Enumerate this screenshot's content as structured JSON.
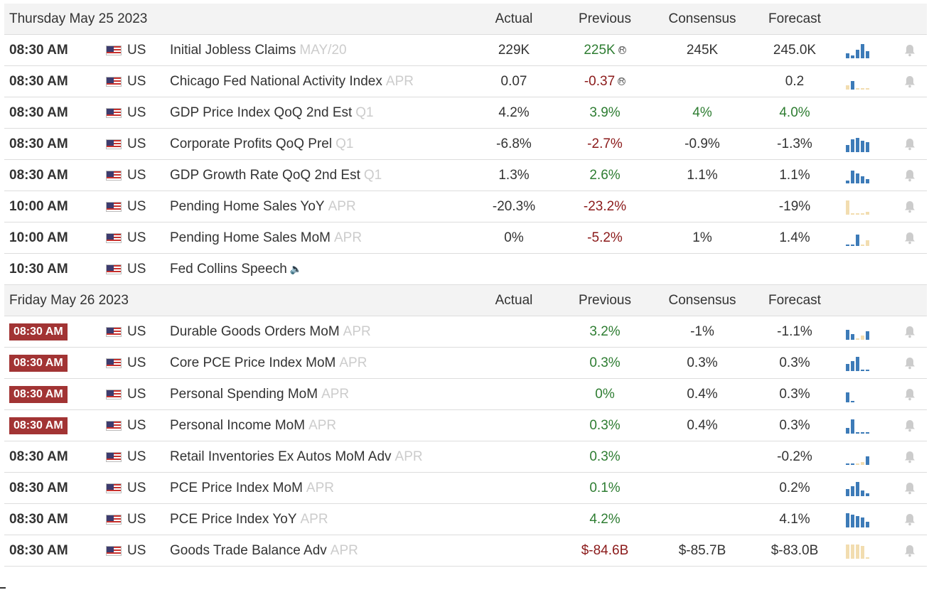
{
  "columns": {
    "actual": "Actual",
    "previous": "Previous",
    "consensus": "Consensus",
    "forecast": "Forecast"
  },
  "colors": {
    "positive": "#2e7d32",
    "negative": "#8b1a1a",
    "badge": "#a23434",
    "spark_blue": "#3d7bb8",
    "spark_tan": "#f2ddb0"
  },
  "days": [
    {
      "date": "Thursday May 25 2023",
      "events": [
        {
          "time": "08:30 AM",
          "hot": false,
          "country": "US",
          "event": "Initial Jobless Claims",
          "ref": "MAY/20",
          "actual": "229K",
          "previous": "225K",
          "prev_class": "pos",
          "prev_revised": true,
          "consensus": "245K",
          "forecast": "245.0K",
          "fore_class": "",
          "spark": [
            {
              "v": 0.35,
              "c": "b"
            },
            {
              "v": 0.2,
              "c": "b"
            },
            {
              "v": 0.6,
              "c": "b"
            },
            {
              "v": 1,
              "c": "b"
            },
            {
              "v": 0.5,
              "c": "b"
            }
          ],
          "bell": true
        },
        {
          "time": "08:30 AM",
          "hot": false,
          "country": "US",
          "event": "Chicago Fed National Activity Index",
          "ref": "APR",
          "actual": "0.07",
          "previous": "-0.37",
          "prev_class": "neg",
          "prev_revised": true,
          "consensus": "",
          "forecast": "0.2",
          "fore_class": "",
          "spark": [
            {
              "v": 0.3,
              "c": "t"
            },
            {
              "v": 0.6,
              "c": "b"
            },
            {
              "v": 0.1,
              "c": "t"
            },
            {
              "v": 0.1,
              "c": "t"
            },
            {
              "v": 0.1,
              "c": "t"
            }
          ],
          "bell": true
        },
        {
          "time": "08:30 AM",
          "hot": false,
          "country": "US",
          "event": "GDP Price Index QoQ 2nd Est",
          "ref": "Q1",
          "actual": "4.2%",
          "previous": "3.9%",
          "prev_class": "pos",
          "prev_revised": false,
          "consensus": "4%",
          "cons_class": "pos",
          "forecast": "4.0%",
          "fore_class": "pos",
          "spark": [],
          "bell": false
        },
        {
          "time": "08:30 AM",
          "hot": false,
          "country": "US",
          "event": "Corporate Profits QoQ Prel",
          "ref": "Q1",
          "actual": "-6.8%",
          "previous": "-2.7%",
          "prev_class": "neg",
          "prev_revised": false,
          "consensus": "-0.9%",
          "forecast": "-1.3%",
          "fore_class": "",
          "spark": [
            {
              "v": 0.5,
              "c": "b"
            },
            {
              "v": 0.9,
              "c": "b"
            },
            {
              "v": 1,
              "c": "b"
            },
            {
              "v": 0.8,
              "c": "b"
            },
            {
              "v": 0.7,
              "c": "b"
            }
          ],
          "bell": true
        },
        {
          "time": "08:30 AM",
          "hot": false,
          "country": "US",
          "event": "GDP Growth Rate QoQ 2nd Est",
          "ref": "Q1",
          "actual": "1.3%",
          "previous": "2.6%",
          "prev_class": "pos",
          "prev_revised": false,
          "consensus": "1.1%",
          "forecast": "1.1%",
          "fore_class": "",
          "spark": [
            {
              "v": 0.2,
              "c": "b"
            },
            {
              "v": 0.9,
              "c": "b"
            },
            {
              "v": 0.7,
              "c": "b"
            },
            {
              "v": 0.5,
              "c": "b"
            },
            {
              "v": 0.3,
              "c": "b"
            }
          ],
          "bell": true
        },
        {
          "time": "10:00 AM",
          "hot": false,
          "country": "US",
          "event": "Pending Home Sales YoY",
          "ref": "APR",
          "actual": "-20.3%",
          "previous": "-23.2%",
          "prev_class": "neg",
          "prev_revised": false,
          "consensus": "",
          "forecast": "-19%",
          "fore_class": "",
          "spark": [
            {
              "v": 1,
              "c": "t"
            },
            {
              "v": 0.1,
              "c": "t"
            },
            {
              "v": 0.1,
              "c": "t"
            },
            {
              "v": 0.1,
              "c": "t"
            },
            {
              "v": 0.2,
              "c": "t"
            }
          ],
          "bell": true
        },
        {
          "time": "10:00 AM",
          "hot": false,
          "country": "US",
          "event": "Pending Home Sales MoM",
          "ref": "APR",
          "actual": "0%",
          "previous": "-5.2%",
          "prev_class": "neg",
          "prev_revised": false,
          "consensus": "1%",
          "forecast": "1.4%",
          "fore_class": "",
          "spark": [
            {
              "v": 0.1,
              "c": "b"
            },
            {
              "v": 0.1,
              "c": "b"
            },
            {
              "v": 0.8,
              "c": "b"
            },
            {
              "v": 0.1,
              "c": "t"
            },
            {
              "v": 0.4,
              "c": "t"
            }
          ],
          "bell": true
        },
        {
          "time": "10:30 AM",
          "hot": false,
          "country": "US",
          "event": "Fed Collins Speech",
          "ref": "",
          "speech": true,
          "actual": "",
          "previous": "",
          "prev_class": "",
          "prev_revised": false,
          "consensus": "",
          "forecast": "",
          "fore_class": "",
          "spark": [],
          "bell": false
        }
      ]
    },
    {
      "date": "Friday May 26 2023",
      "events": [
        {
          "time": "08:30 AM",
          "hot": true,
          "country": "US",
          "event": "Durable Goods Orders MoM",
          "ref": "APR",
          "actual": "",
          "previous": "3.2%",
          "prev_class": "pos",
          "prev_revised": false,
          "consensus": "-1%",
          "forecast": "-1.1%",
          "fore_class": "",
          "spark": [
            {
              "v": 0.7,
              "c": "b"
            },
            {
              "v": 0.4,
              "c": "b"
            },
            {
              "v": 0.1,
              "c": "t"
            },
            {
              "v": 0.3,
              "c": "t"
            },
            {
              "v": 0.6,
              "c": "b"
            }
          ],
          "bell": true
        },
        {
          "time": "08:30 AM",
          "hot": true,
          "country": "US",
          "event": "Core PCE Price Index MoM",
          "ref": "APR",
          "actual": "",
          "previous": "0.3%",
          "prev_class": "pos",
          "prev_revised": false,
          "consensus": "0.3%",
          "forecast": "0.3%",
          "fore_class": "",
          "spark": [
            {
              "v": 0.5,
              "c": "b"
            },
            {
              "v": 0.7,
              "c": "b"
            },
            {
              "v": 1,
              "c": "b"
            },
            {
              "v": 0.1,
              "c": "b"
            },
            {
              "v": 0.1,
              "c": "b"
            }
          ],
          "bell": true
        },
        {
          "time": "08:30 AM",
          "hot": true,
          "country": "US",
          "event": "Personal Spending MoM",
          "ref": "APR",
          "actual": "",
          "previous": "0%",
          "prev_class": "pos",
          "prev_revised": false,
          "consensus": "0.4%",
          "forecast": "0.3%",
          "fore_class": "",
          "spark": [
            {
              "v": 0.7,
              "c": "b"
            },
            {
              "v": 0.1,
              "c": "b"
            }
          ],
          "bell": true
        },
        {
          "time": "08:30 AM",
          "hot": true,
          "country": "US",
          "event": "Personal Income MoM",
          "ref": "APR",
          "actual": "",
          "previous": "0.3%",
          "prev_class": "pos",
          "prev_revised": false,
          "consensus": "0.4%",
          "forecast": "0.3%",
          "fore_class": "",
          "spark": [
            {
              "v": 0.4,
              "c": "b"
            },
            {
              "v": 1,
              "c": "b"
            },
            {
              "v": 0.1,
              "c": "b"
            },
            {
              "v": 0.1,
              "c": "b"
            },
            {
              "v": 0.1,
              "c": "b"
            }
          ],
          "bell": true
        },
        {
          "time": "08:30 AM",
          "hot": false,
          "country": "US",
          "event": "Retail Inventories Ex Autos MoM Adv",
          "ref": "APR",
          "actual": "",
          "previous": "0.3%",
          "prev_class": "pos",
          "prev_revised": false,
          "consensus": "",
          "forecast": "-0.2%",
          "fore_class": "",
          "spark": [
            {
              "v": 0.1,
              "c": "b"
            },
            {
              "v": 0.1,
              "c": "b"
            },
            {
              "v": 0.1,
              "c": "t"
            },
            {
              "v": 0.2,
              "c": "t"
            },
            {
              "v": 0.6,
              "c": "b"
            }
          ],
          "bell": true
        },
        {
          "time": "08:30 AM",
          "hot": false,
          "country": "US",
          "event": "PCE Price Index MoM",
          "ref": "APR",
          "actual": "",
          "previous": "0.1%",
          "prev_class": "pos",
          "prev_revised": false,
          "consensus": "",
          "forecast": "0.2%",
          "fore_class": "",
          "spark": [
            {
              "v": 0.5,
              "c": "b"
            },
            {
              "v": 0.7,
              "c": "b"
            },
            {
              "v": 1,
              "c": "b"
            },
            {
              "v": 0.4,
              "c": "b"
            },
            {
              "v": 0.2,
              "c": "b"
            }
          ],
          "bell": true
        },
        {
          "time": "08:30 AM",
          "hot": false,
          "country": "US",
          "event": "PCE Price Index YoY",
          "ref": "APR",
          "actual": "",
          "previous": "4.2%",
          "prev_class": "pos",
          "prev_revised": false,
          "consensus": "",
          "forecast": "4.1%",
          "fore_class": "",
          "spark": [
            {
              "v": 1,
              "c": "b"
            },
            {
              "v": 0.9,
              "c": "b"
            },
            {
              "v": 0.8,
              "c": "b"
            },
            {
              "v": 0.7,
              "c": "b"
            },
            {
              "v": 0.4,
              "c": "b"
            }
          ],
          "bell": true
        },
        {
          "time": "08:30 AM",
          "hot": false,
          "country": "US",
          "event": "Goods Trade Balance Adv",
          "ref": "APR",
          "actual": "",
          "previous": "$-84.6B",
          "prev_class": "neg",
          "prev_revised": false,
          "consensus": "$-85.7B",
          "forecast": "$-83.0B",
          "fore_class": "",
          "spark": [
            {
              "v": 1,
              "c": "t"
            },
            {
              "v": 1,
              "c": "t"
            },
            {
              "v": 1,
              "c": "t"
            },
            {
              "v": 0.9,
              "c": "t"
            },
            {
              "v": 0.1,
              "c": "t"
            }
          ],
          "bell": true
        }
      ]
    }
  ]
}
